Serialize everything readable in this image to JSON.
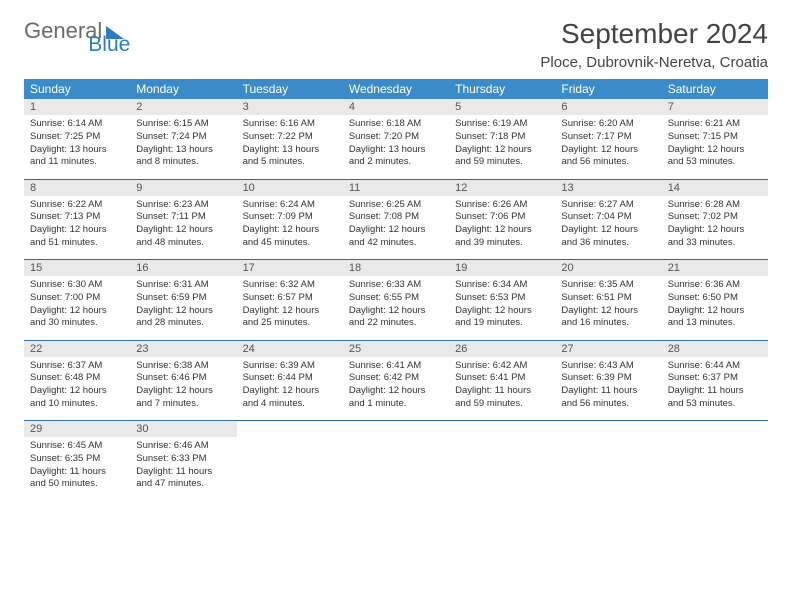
{
  "logo": {
    "text1": "General",
    "text2": "Blue"
  },
  "title": "September 2024",
  "location": "Ploce, Dubrovnik-Neretva, Croatia",
  "header_bg": "#3b8bc8",
  "header_fg": "#ffffff",
  "daynum_bg": "#e9e9e9",
  "rule_color": "#2f6da0",
  "weekdays": [
    "Sunday",
    "Monday",
    "Tuesday",
    "Wednesday",
    "Thursday",
    "Friday",
    "Saturday"
  ],
  "weeks": [
    [
      {
        "n": "1",
        "sr": "6:14 AM",
        "ss": "7:25 PM",
        "dl": "13 hours and 11 minutes."
      },
      {
        "n": "2",
        "sr": "6:15 AM",
        "ss": "7:24 PM",
        "dl": "13 hours and 8 minutes."
      },
      {
        "n": "3",
        "sr": "6:16 AM",
        "ss": "7:22 PM",
        "dl": "13 hours and 5 minutes."
      },
      {
        "n": "4",
        "sr": "6:18 AM",
        "ss": "7:20 PM",
        "dl": "13 hours and 2 minutes."
      },
      {
        "n": "5",
        "sr": "6:19 AM",
        "ss": "7:18 PM",
        "dl": "12 hours and 59 minutes."
      },
      {
        "n": "6",
        "sr": "6:20 AM",
        "ss": "7:17 PM",
        "dl": "12 hours and 56 minutes."
      },
      {
        "n": "7",
        "sr": "6:21 AM",
        "ss": "7:15 PM",
        "dl": "12 hours and 53 minutes."
      }
    ],
    [
      {
        "n": "8",
        "sr": "6:22 AM",
        "ss": "7:13 PM",
        "dl": "12 hours and 51 minutes."
      },
      {
        "n": "9",
        "sr": "6:23 AM",
        "ss": "7:11 PM",
        "dl": "12 hours and 48 minutes."
      },
      {
        "n": "10",
        "sr": "6:24 AM",
        "ss": "7:09 PM",
        "dl": "12 hours and 45 minutes."
      },
      {
        "n": "11",
        "sr": "6:25 AM",
        "ss": "7:08 PM",
        "dl": "12 hours and 42 minutes."
      },
      {
        "n": "12",
        "sr": "6:26 AM",
        "ss": "7:06 PM",
        "dl": "12 hours and 39 minutes."
      },
      {
        "n": "13",
        "sr": "6:27 AM",
        "ss": "7:04 PM",
        "dl": "12 hours and 36 minutes."
      },
      {
        "n": "14",
        "sr": "6:28 AM",
        "ss": "7:02 PM",
        "dl": "12 hours and 33 minutes."
      }
    ],
    [
      {
        "n": "15",
        "sr": "6:30 AM",
        "ss": "7:00 PM",
        "dl": "12 hours and 30 minutes."
      },
      {
        "n": "16",
        "sr": "6:31 AM",
        "ss": "6:59 PM",
        "dl": "12 hours and 28 minutes."
      },
      {
        "n": "17",
        "sr": "6:32 AM",
        "ss": "6:57 PM",
        "dl": "12 hours and 25 minutes."
      },
      {
        "n": "18",
        "sr": "6:33 AM",
        "ss": "6:55 PM",
        "dl": "12 hours and 22 minutes."
      },
      {
        "n": "19",
        "sr": "6:34 AM",
        "ss": "6:53 PM",
        "dl": "12 hours and 19 minutes."
      },
      {
        "n": "20",
        "sr": "6:35 AM",
        "ss": "6:51 PM",
        "dl": "12 hours and 16 minutes."
      },
      {
        "n": "21",
        "sr": "6:36 AM",
        "ss": "6:50 PM",
        "dl": "12 hours and 13 minutes."
      }
    ],
    [
      {
        "n": "22",
        "sr": "6:37 AM",
        "ss": "6:48 PM",
        "dl": "12 hours and 10 minutes."
      },
      {
        "n": "23",
        "sr": "6:38 AM",
        "ss": "6:46 PM",
        "dl": "12 hours and 7 minutes."
      },
      {
        "n": "24",
        "sr": "6:39 AM",
        "ss": "6:44 PM",
        "dl": "12 hours and 4 minutes."
      },
      {
        "n": "25",
        "sr": "6:41 AM",
        "ss": "6:42 PM",
        "dl": "12 hours and 1 minute."
      },
      {
        "n": "26",
        "sr": "6:42 AM",
        "ss": "6:41 PM",
        "dl": "11 hours and 59 minutes."
      },
      {
        "n": "27",
        "sr": "6:43 AM",
        "ss": "6:39 PM",
        "dl": "11 hours and 56 minutes."
      },
      {
        "n": "28",
        "sr": "6:44 AM",
        "ss": "6:37 PM",
        "dl": "11 hours and 53 minutes."
      }
    ],
    [
      {
        "n": "29",
        "sr": "6:45 AM",
        "ss": "6:35 PM",
        "dl": "11 hours and 50 minutes."
      },
      {
        "n": "30",
        "sr": "6:46 AM",
        "ss": "6:33 PM",
        "dl": "11 hours and 47 minutes."
      },
      null,
      null,
      null,
      null,
      null
    ]
  ],
  "labels": {
    "sunrise": "Sunrise: ",
    "sunset": "Sunset: ",
    "daylight": "Daylight: "
  }
}
